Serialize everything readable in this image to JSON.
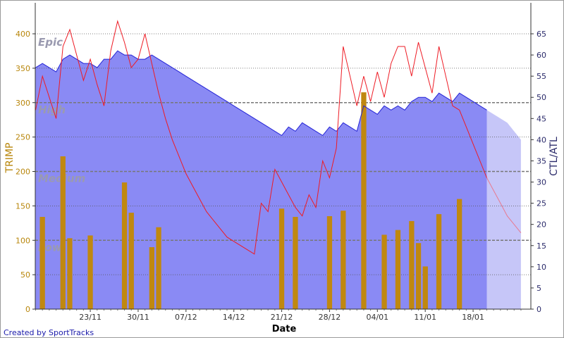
{
  "chart_data": {
    "type": "area",
    "x_dates": [
      "2005-11-15",
      "2005-11-16",
      "2005-11-17",
      "2005-11-18",
      "2005-11-19",
      "2005-11-20",
      "2005-11-21",
      "2005-11-22",
      "2005-11-23",
      "2005-11-24",
      "2005-11-25",
      "2005-11-26",
      "2005-11-27",
      "2005-11-28",
      "2005-11-29",
      "2005-11-30",
      "2005-12-01",
      "2005-12-02",
      "2005-12-03",
      "2005-12-04",
      "2005-12-05",
      "2005-12-06",
      "2005-12-07",
      "2005-12-08",
      "2005-12-09",
      "2005-12-10",
      "2005-12-11",
      "2005-12-12",
      "2005-12-13",
      "2005-12-14",
      "2005-12-15",
      "2005-12-16",
      "2005-12-17",
      "2005-12-18",
      "2005-12-19",
      "2005-12-20",
      "2005-12-21",
      "2005-12-22",
      "2005-12-23",
      "2005-12-24",
      "2005-12-25",
      "2005-12-26",
      "2005-12-27",
      "2005-12-28",
      "2005-12-29",
      "2005-12-30",
      "2005-12-31",
      "2006-01-01",
      "2006-01-02",
      "2006-01-03",
      "2006-01-04",
      "2006-01-05",
      "2006-01-06",
      "2006-01-07",
      "2006-01-08",
      "2006-01-09",
      "2006-01-10",
      "2006-01-11",
      "2006-01-12",
      "2006-01-13",
      "2006-01-14",
      "2006-01-15",
      "2006-01-16",
      "2006-01-17",
      "2006-01-18",
      "2006-01-19",
      "2006-01-20",
      "2006-01-21",
      "2006-01-22",
      "2006-01-23",
      "2006-01-24",
      "2006-01-25"
    ],
    "x_tick_labels": [
      "23/11",
      "30/11",
      "07/12",
      "14/12",
      "21/12",
      "28/12",
      "04/01",
      "11/01",
      "18/01"
    ],
    "x_tick_dates": [
      "2005-11-23",
      "2005-11-30",
      "2005-12-07",
      "2005-12-14",
      "2005-12-21",
      "2005-12-28",
      "2006-01-04",
      "2006-01-11",
      "2006-01-18"
    ],
    "xlabel": "Date",
    "ylabel_left": "TRIMP",
    "ylabel_right": "CTL/ATL",
    "ylim_left": [
      0,
      400
    ],
    "ylim_right": [
      0,
      65
    ],
    "yticks_left": [
      0,
      50,
      100,
      150,
      200,
      250,
      300,
      350,
      400
    ],
    "yticks_right": [
      0,
      5,
      10,
      15,
      20,
      25,
      30,
      35,
      40,
      45,
      50,
      55,
      60,
      65
    ],
    "zones": [
      {
        "label": "Low",
        "value": 100
      },
      {
        "label": "Medium",
        "value": 200
      },
      {
        "label": "High",
        "value": 300
      },
      {
        "label": "Epic",
        "value": 400
      }
    ],
    "projection_start": "2006-01-20",
    "series": [
      {
        "kind": "bar",
        "axis": "left",
        "points": [
          [
            "2005-11-16",
            134
          ],
          [
            "2005-11-19",
            222
          ],
          [
            "2005-11-20",
            103
          ],
          [
            "2005-11-23",
            107
          ],
          [
            "2005-11-28",
            184
          ],
          [
            "2005-11-29",
            140
          ],
          [
            "2005-12-02",
            90
          ],
          [
            "2005-12-03",
            119
          ],
          [
            "2005-12-21",
            146
          ],
          [
            "2005-12-23",
            134
          ],
          [
            "2005-12-28",
            135
          ],
          [
            "2005-12-30",
            143
          ],
          [
            "2006-01-02",
            315
          ],
          [
            "2006-01-05",
            108
          ],
          [
            "2006-01-07",
            115
          ],
          [
            "2006-01-09",
            128
          ],
          [
            "2006-01-10",
            96
          ],
          [
            "2006-01-11",
            62
          ],
          [
            "2006-01-13",
            138
          ],
          [
            "2006-01-16",
            160
          ]
        ]
      },
      {
        "kind": "area",
        "axis": "right",
        "values": [
          57,
          58,
          57,
          56,
          59,
          60,
          59,
          58,
          58,
          57,
          59,
          59,
          61,
          60,
          60,
          59,
          59,
          60,
          59,
          58,
          57,
          56,
          55,
          54,
          53,
          52,
          51,
          50,
          49,
          48,
          47,
          46,
          45,
          44,
          43,
          42,
          41,
          43,
          42,
          44,
          43,
          42,
          41,
          43,
          42,
          44,
          43,
          42,
          48,
          47,
          46,
          48,
          47,
          48,
          47,
          49,
          50,
          50,
          49,
          51,
          50,
          49,
          51,
          50,
          49,
          48,
          47,
          46,
          45,
          44,
          42,
          40
        ]
      },
      {
        "kind": "line",
        "axis": "right",
        "values": [
          47,
          55,
          50,
          45,
          62,
          66,
          60,
          54,
          59,
          53,
          48,
          61,
          68,
          63,
          57,
          59,
          65,
          58,
          51,
          45,
          40,
          36,
          32,
          29,
          26,
          23,
          21,
          19,
          17,
          16,
          15,
          14,
          13,
          25,
          23,
          33,
          30,
          27,
          24,
          22,
          27,
          24,
          35,
          31,
          38,
          62,
          55,
          48,
          55,
          49,
          56,
          50,
          58,
          62,
          62,
          55,
          63,
          57,
          51,
          62,
          55,
          48,
          47,
          43,
          39,
          35,
          31,
          28,
          25,
          22,
          20,
          18
        ]
      }
    ]
  },
  "footer": {
    "credit": "Created by SportTracks"
  },
  "colors": {
    "area_fill": "#8a8af4",
    "area_line": "#2323d6",
    "line": "#ee1b24",
    "bar": "#c08810",
    "projection_fill": "#c6c6f8",
    "left_axis": "#b8860b",
    "right_axis": "#2a2a6a",
    "zone_text": "#9a9ab0"
  }
}
